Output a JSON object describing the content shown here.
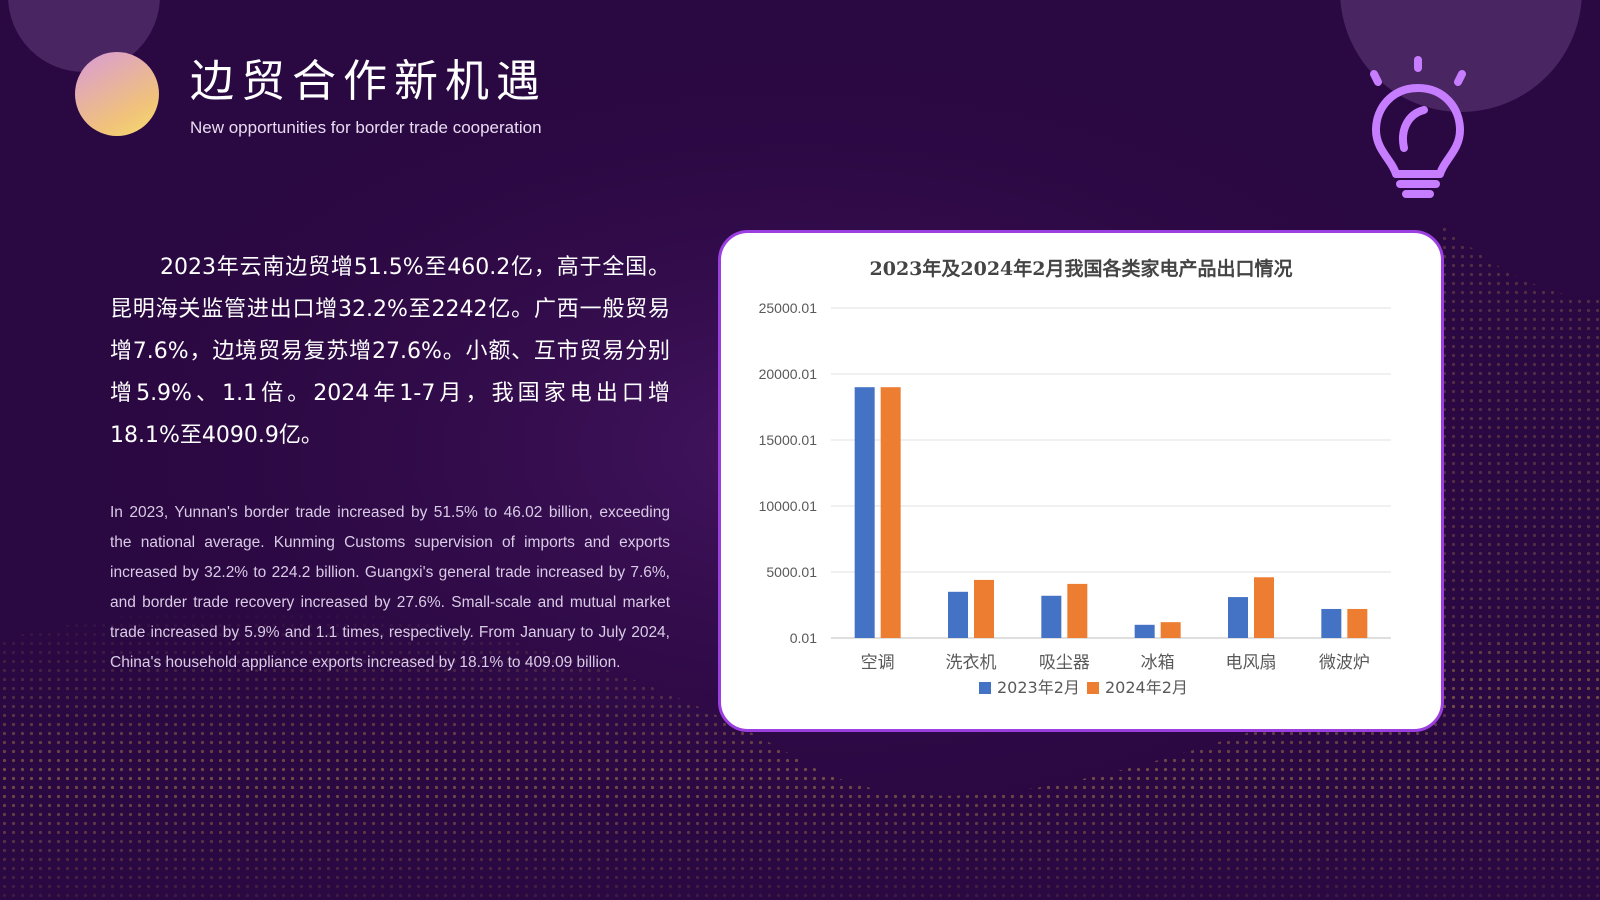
{
  "header": {
    "title": "边贸合作新机遇",
    "subtitle": "New opportunities for border trade cooperation"
  },
  "body": {
    "chinese": "2023年云南边贸增51.5%至460.2亿，高于全国。昆明海关监管进出口增32.2%至2242亿。广西一般贸易增7.6%，边境贸易复苏增27.6%。小额、互市贸易分别增5.9%、1.1倍。2024年1-7月，我国家电出口增18.1%至4090.9亿。",
    "english": "In 2023, Yunnan's border trade increased by 51.5% to 46.02 billion, exceeding the national average. Kunming Customs supervision of imports and exports increased by 32.2% to 224.2 billion. Guangxi's general trade increased by 7.6%, and border trade recovery increased by 27.6%. Small-scale and mutual market trade increased by 5.9% and 1.1 times, respectively. From January to July 2024, China's household appliance exports increased by 18.1% to 409.09 billion."
  },
  "colors": {
    "background": "#2a0841",
    "series_2023": "#4472c4",
    "series_2024": "#ed7d31",
    "card_border": "#9b3fe0",
    "bulb": "#c77dff"
  },
  "icons": {
    "title_orb": "gradient-orb-icon",
    "bulb": "lightbulb-icon"
  },
  "chart_data": {
    "type": "bar",
    "title": "2023年及2024年2月我国各类家电产品出口情况",
    "categories": [
      "空调",
      "洗衣机",
      "吸尘器",
      "冰箱",
      "电风扇",
      "微波炉"
    ],
    "series": [
      {
        "name": "2023年2月",
        "values": [
          19000,
          3500,
          3200,
          1000,
          3100,
          2200
        ]
      },
      {
        "name": "2024年2月",
        "values": [
          19000,
          4400,
          4100,
          1200,
          4600,
          2200
        ]
      }
    ],
    "yticks": [
      "0.01",
      "5000.01",
      "10000.01",
      "15000.01",
      "20000.01",
      "25000.01"
    ],
    "ylim": [
      0.01,
      25000.01
    ],
    "legend_position": "bottom",
    "grid": true
  }
}
